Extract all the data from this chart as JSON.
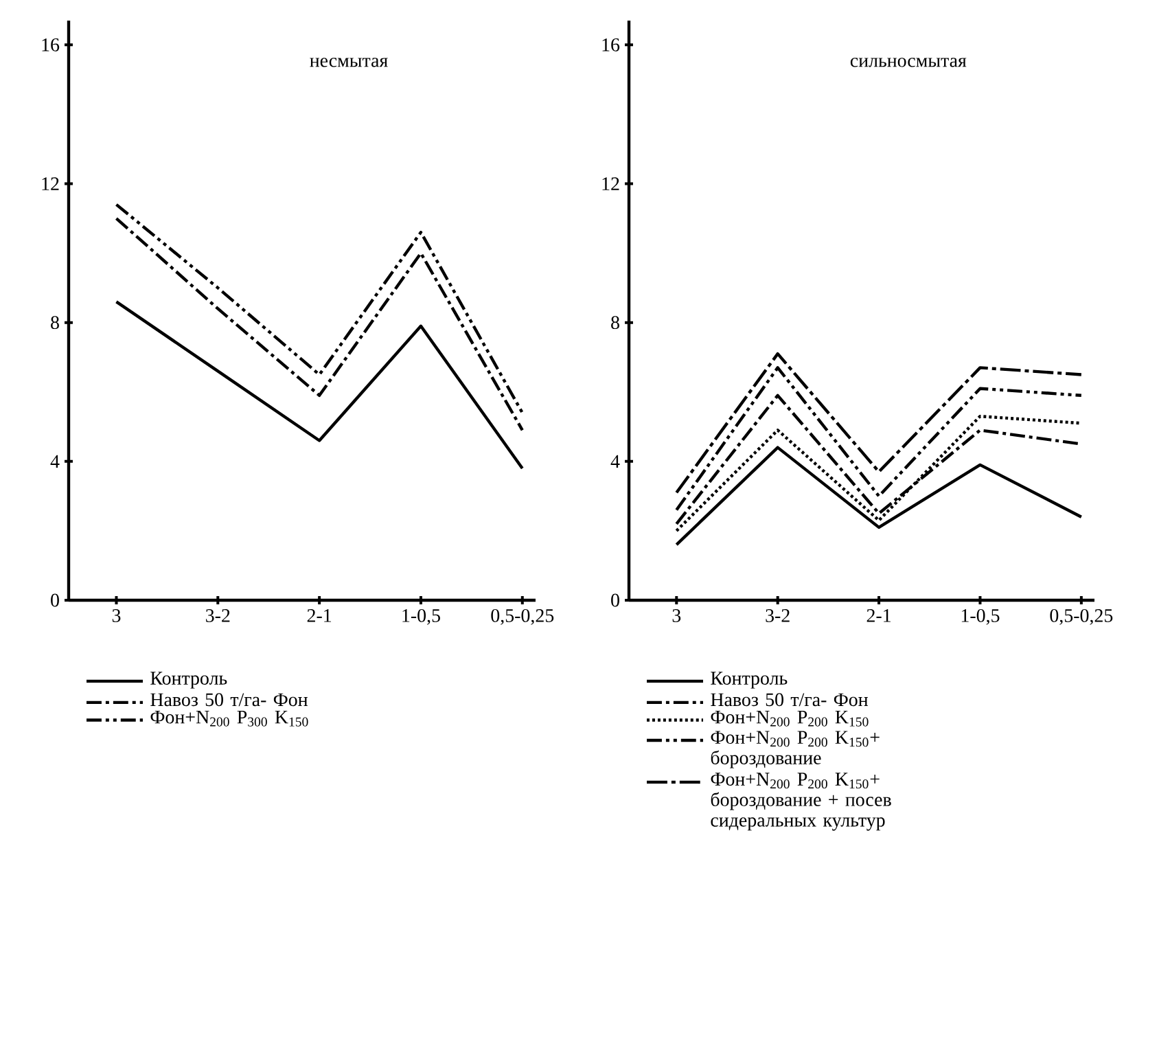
{
  "chart_data": [
    {
      "type": "line",
      "title": "несмытая",
      "categories": [
        "3",
        "3-2",
        "2-1",
        "1-0,5",
        "0,5-0,25"
      ],
      "ylim": [
        0,
        16.7
      ],
      "yticks": [
        0,
        4,
        8,
        12,
        16
      ],
      "legend": "bottom",
      "series": [
        {
          "name": "Контроль",
          "color": "#000000",
          "line_style": "solid",
          "values": [
            8.6,
            6.6,
            4.6,
            7.9,
            3.8
          ]
        },
        {
          "name": "Навоз 50 т/га- Фон",
          "color": "#000000",
          "line_style": "dashdot",
          "values": [
            11.0,
            8.4,
            5.9,
            10.0,
            4.9
          ]
        },
        {
          "name": "Фон+N$_{200}$ P$_{300}$ K$_{150}$",
          "color": "#000000",
          "line_style": "dashdotdot",
          "values": [
            11.4,
            9.0,
            6.5,
            10.6,
            5.4
          ]
        }
      ]
    },
    {
      "type": "line",
      "title": "сильносмытая",
      "categories": [
        "3",
        "3-2",
        "2-1",
        "1-0,5",
        "0,5-0,25"
      ],
      "ylim": [
        0,
        16.7
      ],
      "yticks": [
        0,
        4,
        8,
        12,
        16
      ],
      "legend": "bottom",
      "series": [
        {
          "name": "Контроль",
          "color": "#000000",
          "line_style": "solid",
          "values": [
            1.6,
            4.4,
            2.1,
            3.9,
            2.4
          ]
        },
        {
          "name": "Навоз 50 т/га- Фон",
          "color": "#000000",
          "line_style": "dashdot",
          "values": [
            2.2,
            5.9,
            2.5,
            4.9,
            4.5
          ]
        },
        {
          "name": "Фон+N$_{200}$ P$_{200}$ K$_{150}$",
          "color": "#000000",
          "line_style": "dotted",
          "values": [
            2.0,
            4.9,
            2.3,
            5.3,
            5.1
          ]
        },
        {
          "name": "Фон+N$_{200}$ P$_{200}$ K$_{150}$+ бороздование",
          "color": "#000000",
          "line_style": "dashdotdot",
          "values": [
            2.6,
            6.7,
            3.0,
            6.1,
            5.9
          ]
        },
        {
          "name": "Фон+N$_{200}$ P$_{200}$ K$_{150}$+ бороздование + посев сидеральных культур",
          "color": "#000000",
          "line_style": "longdashdot",
          "values": [
            3.1,
            7.1,
            3.7,
            6.7,
            6.5
          ]
        }
      ]
    }
  ]
}
